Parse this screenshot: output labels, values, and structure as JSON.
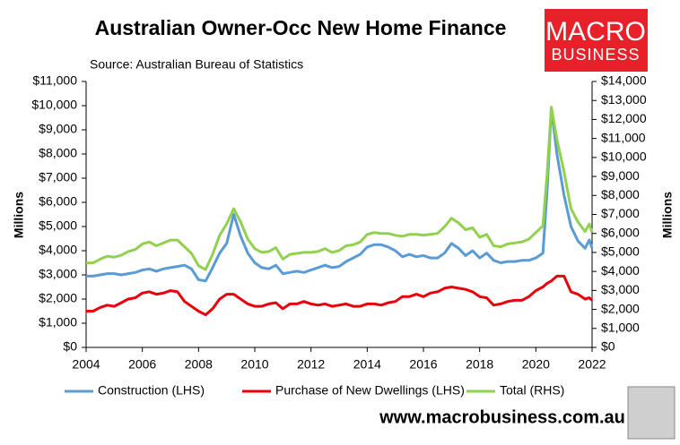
{
  "chart_data": {
    "type": "line",
    "title": "Australian Owner-Occ New Home Finance",
    "subtitle": "Source: Australian Bureau of Statistics",
    "y_label": "Millions",
    "y2_label": "Millions",
    "x": [
      2004,
      2004.25,
      2004.5,
      2004.75,
      2005,
      2005.25,
      2005.5,
      2005.75,
      2006,
      2006.25,
      2006.5,
      2006.75,
      2007,
      2007.25,
      2007.5,
      2007.75,
      2008,
      2008.25,
      2008.5,
      2008.75,
      2009,
      2009.25,
      2009.5,
      2009.75,
      2010,
      2010.25,
      2010.5,
      2010.75,
      2011,
      2011.25,
      2011.5,
      2011.75,
      2012,
      2012.25,
      2012.5,
      2012.75,
      2013,
      2013.25,
      2013.5,
      2013.75,
      2014,
      2014.25,
      2014.5,
      2014.75,
      2015,
      2015.25,
      2015.5,
      2015.75,
      2016,
      2016.25,
      2016.5,
      2016.75,
      2017,
      2017.25,
      2017.5,
      2017.75,
      2018,
      2018.25,
      2018.5,
      2018.75,
      2019,
      2019.25,
      2019.5,
      2019.75,
      2020,
      2020.25,
      2020.4,
      2020.55,
      2020.75,
      2021,
      2021.25,
      2021.5,
      2021.75,
      2021.9,
      2022
    ],
    "series": [
      {
        "name": "Construction (LHS)",
        "color": "#5b9bd5",
        "axis": "y",
        "values": [
          2950,
          2950,
          3000,
          3050,
          3050,
          3000,
          3050,
          3100,
          3200,
          3250,
          3150,
          3250,
          3300,
          3350,
          3400,
          3250,
          2800,
          2750,
          3300,
          3900,
          4300,
          5500,
          4600,
          3900,
          3500,
          3300,
          3250,
          3400,
          3050,
          3100,
          3150,
          3100,
          3200,
          3300,
          3400,
          3300,
          3350,
          3550,
          3700,
          3850,
          4150,
          4250,
          4250,
          4150,
          4000,
          3750,
          3850,
          3750,
          3800,
          3700,
          3700,
          3900,
          4300,
          4100,
          3800,
          4000,
          3700,
          3900,
          3600,
          3500,
          3550,
          3550,
          3600,
          3600,
          3700,
          3900,
          6500,
          9900,
          8000,
          6300,
          5000,
          4400,
          4100,
          4450,
          4100
        ]
      },
      {
        "name": "Purchase of New Dwellings (LHS)",
        "color": "#e8000b",
        "axis": "y",
        "values": [
          1500,
          1500,
          1650,
          1750,
          1700,
          1850,
          2000,
          2050,
          2250,
          2300,
          2200,
          2250,
          2350,
          2300,
          1900,
          1700,
          1500,
          1350,
          1600,
          2000,
          2200,
          2200,
          2000,
          1800,
          1700,
          1700,
          1800,
          1850,
          1600,
          1800,
          1800,
          1900,
          1800,
          1750,
          1800,
          1700,
          1750,
          1800,
          1700,
          1700,
          1800,
          1800,
          1750,
          1850,
          1900,
          2100,
          2100,
          2200,
          2100,
          2250,
          2300,
          2450,
          2500,
          2450,
          2400,
          2300,
          2100,
          2050,
          1750,
          1800,
          1900,
          1950,
          1950,
          2100,
          2350,
          2500,
          2650,
          2750,
          2950,
          2950,
          2300,
          2200,
          2000,
          2050,
          1950
        ]
      },
      {
        "name": "Total (RHS)",
        "color": "#92d050",
        "axis": "y2",
        "values": [
          4450,
          4450,
          4650,
          4800,
          4750,
          4850,
          5050,
          5150,
          5450,
          5550,
          5350,
          5500,
          5650,
          5650,
          5300,
          4950,
          4300,
          4100,
          4900,
          5900,
          6500,
          7300,
          6600,
          5700,
          5200,
          5000,
          5050,
          5250,
          4650,
          4900,
          4950,
          5000,
          5000,
          5050,
          5200,
          5000,
          5100,
          5350,
          5400,
          5550,
          5950,
          6050,
          6000,
          6000,
          5900,
          5850,
          5950,
          5950,
          5900,
          5950,
          6000,
          6350,
          6800,
          6550,
          6200,
          6300,
          5800,
          5950,
          5350,
          5300,
          5450,
          5500,
          5550,
          5700,
          6050,
          6400,
          9150,
          12650,
          10950,
          9250,
          7300,
          6600,
          6100,
          6500,
          6050
        ]
      }
    ],
    "xlim": [
      2004,
      2022
    ],
    "xticks": [
      2004,
      2006,
      2008,
      2010,
      2012,
      2014,
      2016,
      2018,
      2020,
      2022
    ],
    "ylim": [
      0,
      11000
    ],
    "yticks": [
      {
        "value": 0,
        "label": "$0"
      },
      {
        "value": 1000,
        "label": "$1,000"
      },
      {
        "value": 2000,
        "label": "$2,000"
      },
      {
        "value": 3000,
        "label": "$3,000"
      },
      {
        "value": 4000,
        "label": "$4,000"
      },
      {
        "value": 5000,
        "label": "$5,000"
      },
      {
        "value": 6000,
        "label": "$6,000"
      },
      {
        "value": 7000,
        "label": "$7,000"
      },
      {
        "value": 8000,
        "label": "$8,000"
      },
      {
        "value": 9000,
        "label": "$9,000"
      },
      {
        "value": 10000,
        "label": "$10,000"
      },
      {
        "value": 11000,
        "label": "$11,000"
      }
    ],
    "y2lim": [
      0,
      14000
    ],
    "y2ticks": [
      {
        "value": 0,
        "label": "$0"
      },
      {
        "value": 1000,
        "label": "$1,000"
      },
      {
        "value": 2000,
        "label": "$2,000"
      },
      {
        "value": 3000,
        "label": "$3,000"
      },
      {
        "value": 4000,
        "label": "$4,000"
      },
      {
        "value": 5000,
        "label": "$5,000"
      },
      {
        "value": 6000,
        "label": "$6,000"
      },
      {
        "value": 7000,
        "label": "$7,000"
      },
      {
        "value": 8000,
        "label": "$8,000"
      },
      {
        "value": 9000,
        "label": "$9,000"
      },
      {
        "value": 10000,
        "label": "$10,000"
      },
      {
        "value": 11000,
        "label": "$11,000"
      },
      {
        "value": 12000,
        "label": "$12,000"
      },
      {
        "value": 13000,
        "label": "$13,000"
      },
      {
        "value": 14000,
        "label": "$14,000"
      }
    ],
    "grid": false,
    "legend": "bottom"
  },
  "branding": {
    "logo_line1": "MACRO",
    "logo_line2": "BUSINESS",
    "url": "www.macrobusiness.com.au"
  }
}
